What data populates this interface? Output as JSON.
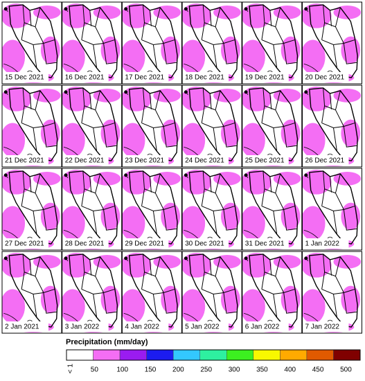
{
  "panels": [
    "15 Dec 2021",
    "16 Dec 2021",
    "17 Dec 2021",
    "18 Dec 2021",
    "19 Dec 2021",
    "20 Dec 2021",
    "21 Dec 2021",
    "22 Dec 2021",
    "23 Dec 2021",
    "24 Dec 2021",
    "25 Dec 2021",
    "26 Dec 2021",
    "27 Dec 2021",
    "28 Dec 2021",
    "29 Dec 2021",
    "30 Dec 2021",
    "31 Dec 2021",
    "1 Jan 2022",
    "2 Jan 2021",
    "3 Jan 2022",
    "4 Jan 2022",
    "5 Jan 2022",
    "6 Jan 2022",
    "7 Jan 2022"
  ],
  "legend": {
    "title": "Precipitation (mm/day)",
    "labels": [
      "< 1",
      "50",
      "100",
      "150",
      "200",
      "250",
      "300",
      "350",
      "400",
      "450",
      "500"
    ],
    "colors": [
      "#ffffff",
      "#f46ef4",
      "#9a1cf0",
      "#1c1cf0",
      "#33c8ff",
      "#2ef0a0",
      "#3cf020",
      "#f8f800",
      "#ffaa00",
      "#e05a00",
      "#800000"
    ]
  }
}
